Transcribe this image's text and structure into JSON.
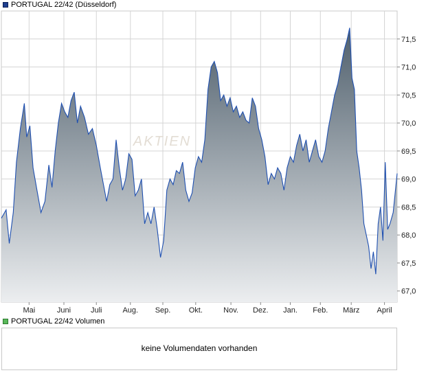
{
  "price_legend": {
    "label": "PORTUGAL 22/42 (Düsseldorf)",
    "color": "#1f3f8f"
  },
  "volume_legend": {
    "label": "PORTUGAL 22/42 Volumen",
    "color": "#59b85a"
  },
  "volume_panel": {
    "message": "keine Volumendaten vorhanden"
  },
  "watermark": "AKTIEN",
  "colors": {
    "line": "#1e4fb0",
    "fill_top": "#4f5f6c",
    "fill_bottom": "#eceef0",
    "grid": "#d4d4d4"
  },
  "chart_data": {
    "type": "area",
    "title": "PORTUGAL 22/42 (Düsseldorf)",
    "xlabel": "",
    "ylabel": "",
    "ylim": [
      66.8,
      72.0
    ],
    "y_ticks": [
      67.0,
      67.5,
      68.0,
      68.5,
      69.0,
      69.5,
      70.0,
      70.5,
      71.0,
      71.5
    ],
    "y_tick_labels": [
      "67,0",
      "67,5",
      "68,0",
      "68,5",
      "69,0",
      "69,5",
      "70,0",
      "70,5",
      "71,0",
      "71,5"
    ],
    "x_ticks": [
      {
        "label": "Mai",
        "t": 0.07
      },
      {
        "label": "Juni",
        "t": 0.158
      },
      {
        "label": "Juli",
        "t": 0.24
      },
      {
        "label": "Aug.",
        "t": 0.326
      },
      {
        "label": "Sep.",
        "t": 0.408
      },
      {
        "label": "Okt.",
        "t": 0.491
      },
      {
        "label": "Nov.",
        "t": 0.58
      },
      {
        "label": "Dez.",
        "t": 0.655
      },
      {
        "label": "Jan.",
        "t": 0.73
      },
      {
        "label": "Feb.",
        "t": 0.806
      },
      {
        "label": "März",
        "t": 0.884
      },
      {
        "label": "April",
        "t": 0.968
      }
    ],
    "grid": true,
    "legend": "top-left",
    "series": [
      {
        "name": "PORTUGAL 22/42 (Düsseldorf)",
        "points": [
          [
            0.0,
            68.3
          ],
          [
            0.012,
            68.45
          ],
          [
            0.02,
            67.85
          ],
          [
            0.03,
            68.4
          ],
          [
            0.038,
            69.3
          ],
          [
            0.048,
            69.9
          ],
          [
            0.058,
            70.35
          ],
          [
            0.064,
            69.75
          ],
          [
            0.072,
            69.95
          ],
          [
            0.08,
            69.2
          ],
          [
            0.09,
            68.8
          ],
          [
            0.1,
            68.4
          ],
          [
            0.11,
            68.6
          ],
          [
            0.12,
            69.25
          ],
          [
            0.128,
            68.85
          ],
          [
            0.136,
            69.5
          ],
          [
            0.144,
            70.0
          ],
          [
            0.152,
            70.35
          ],
          [
            0.16,
            70.2
          ],
          [
            0.168,
            70.1
          ],
          [
            0.176,
            70.4
          ],
          [
            0.184,
            70.55
          ],
          [
            0.192,
            70.0
          ],
          [
            0.2,
            70.3
          ],
          [
            0.21,
            70.1
          ],
          [
            0.22,
            69.8
          ],
          [
            0.23,
            69.9
          ],
          [
            0.24,
            69.6
          ],
          [
            0.25,
            69.2
          ],
          [
            0.258,
            68.9
          ],
          [
            0.266,
            68.6
          ],
          [
            0.274,
            68.9
          ],
          [
            0.282,
            69.0
          ],
          [
            0.29,
            69.7
          ],
          [
            0.298,
            69.2
          ],
          [
            0.306,
            68.8
          ],
          [
            0.314,
            69.0
          ],
          [
            0.322,
            69.45
          ],
          [
            0.33,
            69.35
          ],
          [
            0.338,
            68.7
          ],
          [
            0.346,
            68.8
          ],
          [
            0.354,
            69.0
          ],
          [
            0.362,
            68.2
          ],
          [
            0.37,
            68.4
          ],
          [
            0.378,
            68.2
          ],
          [
            0.386,
            68.5
          ],
          [
            0.394,
            68.1
          ],
          [
            0.402,
            67.6
          ],
          [
            0.41,
            67.9
          ],
          [
            0.418,
            68.8
          ],
          [
            0.426,
            69.0
          ],
          [
            0.434,
            68.9
          ],
          [
            0.442,
            69.15
          ],
          [
            0.45,
            69.1
          ],
          [
            0.458,
            69.3
          ],
          [
            0.466,
            68.8
          ],
          [
            0.474,
            68.6
          ],
          [
            0.482,
            68.75
          ],
          [
            0.49,
            69.2
          ],
          [
            0.498,
            69.4
          ],
          [
            0.506,
            69.3
          ],
          [
            0.514,
            69.7
          ],
          [
            0.522,
            70.6
          ],
          [
            0.53,
            71.0
          ],
          [
            0.538,
            71.1
          ],
          [
            0.546,
            70.9
          ],
          [
            0.554,
            70.4
          ],
          [
            0.562,
            70.5
          ],
          [
            0.57,
            70.3
          ],
          [
            0.578,
            70.45
          ],
          [
            0.586,
            70.2
          ],
          [
            0.594,
            70.3
          ],
          [
            0.602,
            70.1
          ],
          [
            0.61,
            70.2
          ],
          [
            0.618,
            70.05
          ],
          [
            0.626,
            70.0
          ],
          [
            0.634,
            70.45
          ],
          [
            0.642,
            70.3
          ],
          [
            0.65,
            69.9
          ],
          [
            0.658,
            69.7
          ],
          [
            0.666,
            69.4
          ],
          [
            0.674,
            68.9
          ],
          [
            0.682,
            69.1
          ],
          [
            0.69,
            69.0
          ],
          [
            0.698,
            69.2
          ],
          [
            0.706,
            69.1
          ],
          [
            0.714,
            68.8
          ],
          [
            0.722,
            69.2
          ],
          [
            0.73,
            69.4
          ],
          [
            0.738,
            69.3
          ],
          [
            0.746,
            69.6
          ],
          [
            0.754,
            69.8
          ],
          [
            0.762,
            69.5
          ],
          [
            0.77,
            69.7
          ],
          [
            0.778,
            69.3
          ],
          [
            0.786,
            69.5
          ],
          [
            0.794,
            69.7
          ],
          [
            0.802,
            69.4
          ],
          [
            0.81,
            69.3
          ],
          [
            0.818,
            69.5
          ],
          [
            0.826,
            69.9
          ],
          [
            0.834,
            70.2
          ],
          [
            0.842,
            70.5
          ],
          [
            0.85,
            70.7
          ],
          [
            0.858,
            71.0
          ],
          [
            0.866,
            71.3
          ],
          [
            0.874,
            71.5
          ],
          [
            0.88,
            71.7
          ],
          [
            0.886,
            70.8
          ],
          [
            0.892,
            70.6
          ],
          [
            0.898,
            69.5
          ],
          [
            0.904,
            69.2
          ],
          [
            0.91,
            68.8
          ],
          [
            0.916,
            68.2
          ],
          [
            0.922,
            68.0
          ],
          [
            0.928,
            67.8
          ],
          [
            0.934,
            67.4
          ],
          [
            0.94,
            67.7
          ],
          [
            0.946,
            67.3
          ],
          [
            0.952,
            68.2
          ],
          [
            0.958,
            68.5
          ],
          [
            0.964,
            67.9
          ],
          [
            0.97,
            69.3
          ],
          [
            0.976,
            68.1
          ],
          [
            0.982,
            68.2
          ],
          [
            0.99,
            68.4
          ],
          [
            1.0,
            69.1
          ]
        ]
      }
    ]
  }
}
